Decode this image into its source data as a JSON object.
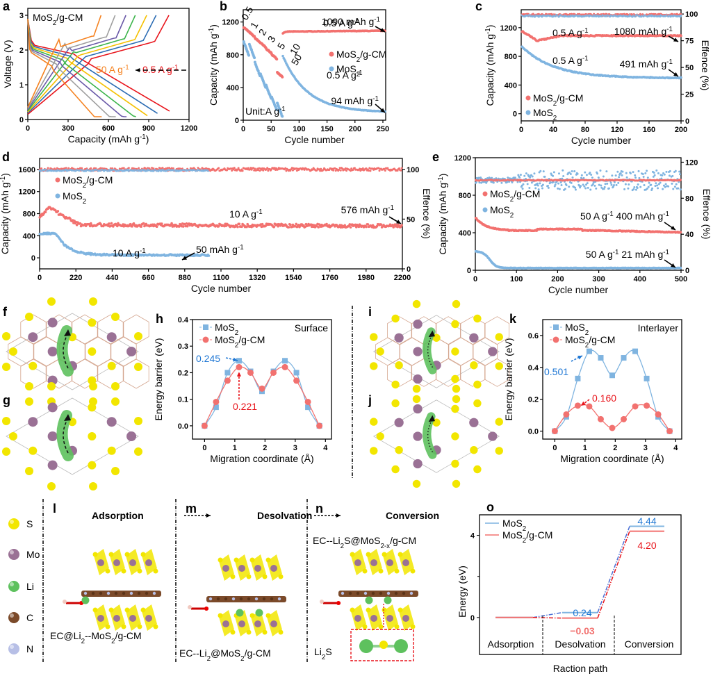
{
  "colors": {
    "red": "#f2716f",
    "blue": "#7fb4e0",
    "blue_dark": "#1f77d4",
    "red_dark": "#e8141b",
    "orange": "#f58220",
    "S": "#f2e600",
    "Mo": "#9a7195",
    "Li": "#5ec15e",
    "C": "#7b4a2a",
    "N": "#b7bfe6"
  },
  "legend_series": {
    "composite": "MoS2/g-CM",
    "bare": "MoS2"
  },
  "chart_data": [
    {
      "id": "a",
      "type": "line",
      "title": "MoS2/g-CM",
      "xlabel": "Capacity (mAh g-1)",
      "ylabel": "Voltage (V)",
      "xlim": [
        0,
        1200
      ],
      "ylim": [
        0,
        3.2
      ],
      "xticks": [
        0,
        300,
        600,
        900,
        1200
      ],
      "yticks": [
        0,
        1,
        2,
        3
      ],
      "annotations": [
        {
          "text": "50 A g-1",
          "color": "#f58220"
        },
        {
          "text": "0.5 A g-1",
          "color": "#e8141b"
        }
      ],
      "series": [
        {
          "name": "0.5 A g-1",
          "color": "#e8141b",
          "charge_end": 1050,
          "discharge_end": 1055
        },
        {
          "name": "1 A g-1",
          "color": "#2b6cb3",
          "charge_end": 955,
          "discharge_end": 965
        },
        {
          "name": "2 A g-1",
          "color": "#f5c000",
          "charge_end": 885,
          "discharge_end": 890
        },
        {
          "name": "3 A g-1",
          "color": "#3cb44b",
          "charge_end": 800,
          "discharge_end": 805
        },
        {
          "name": "5 A g-1",
          "color": "#6a5aa8",
          "charge_end": 730,
          "discharge_end": 735
        },
        {
          "name": "10 A g-1",
          "color": "#9e9e9e",
          "charge_end": 650,
          "discharge_end": 655
        },
        {
          "name": "50 A g-1",
          "color": "#f58220",
          "charge_end": 545,
          "discharge_end": 550
        }
      ]
    },
    {
      "id": "b",
      "type": "scatter",
      "xlabel": "Cycle number",
      "ylabel": "Capacity (mAh g-1)",
      "xlim": [
        0,
        255
      ],
      "ylim": [
        0,
        1350
      ],
      "xticks": [
        0,
        50,
        100,
        150,
        200,
        250
      ],
      "yticks": [
        0,
        400,
        800,
        1200
      ],
      "rate_labels": [
        "0.5",
        "1",
        "2",
        "3",
        "5",
        "10",
        "50"
      ],
      "unit_label": "Unit:A g-1",
      "annotations": [
        "0.5 A g-1",
        "1090 mAh g-1",
        "0.5 A g-1",
        "94 mAh g-1"
      ],
      "series": [
        {
          "name": "MoS2/g-CM",
          "rate_steps": [
            1130,
            1070,
            1000,
            940,
            870,
            800,
            580
          ],
          "recovery": 1060,
          "final": 1090
        },
        {
          "name": "MoS2",
          "rate_steps": [
            950,
            920,
            700,
            560,
            420,
            280,
            200
          ],
          "recovery": 780,
          "final": 94
        }
      ]
    },
    {
      "id": "c",
      "type": "scatter",
      "xlabel": "Cycle number",
      "ylabel": "Capacity (mAh g-1)",
      "y2label": "Effence (%)",
      "xlim": [
        0,
        200
      ],
      "ylim": [
        -100,
        1450
      ],
      "y2lim": [
        0,
        104
      ],
      "xticks": [
        0,
        40,
        80,
        120,
        160,
        200
      ],
      "yticks": [
        0,
        400,
        800,
        1200
      ],
      "y2ticks": [
        0,
        25,
        50,
        75,
        100
      ],
      "annotations": [
        "0.5 A g-1",
        "1080 mAh g-1",
        "0.5 A g-1",
        "491 mAh g-1"
      ],
      "series": [
        {
          "name": "MoS2/g-CM",
          "start": 1150,
          "min": 1010,
          "final": 1080,
          "efficiency": 100
        },
        {
          "name": "MoS2",
          "start": 940,
          "final": 491,
          "efficiency": 99
        }
      ]
    },
    {
      "id": "d",
      "type": "scatter",
      "xlabel": "Cycle number",
      "ylabel": "Capacity (mAh g-1)",
      "y2label": "Effence (%)",
      "xlim": [
        0,
        2200
      ],
      "ylim": [
        -200,
        1800
      ],
      "y2lim": [
        0,
        111
      ],
      "xticks": [
        0,
        220,
        440,
        660,
        880,
        1100,
        1320,
        1540,
        1760,
        1980,
        2200
      ],
      "yticks": [
        0,
        400,
        800,
        1200,
        1600
      ],
      "y2ticks": [
        0,
        50,
        100
      ],
      "annotations": [
        "10 A g-1",
        "576 mAh g-1",
        "10 A g-1",
        "50 mAh g-1"
      ],
      "series": [
        {
          "name": "MoS2/g-CM",
          "start": 900,
          "plateau": 600,
          "final": 576,
          "cycles": 2200,
          "efficiency": 100
        },
        {
          "name": "MoS2",
          "start": 440,
          "final": 50,
          "cycles": 1030,
          "efficiency": 99
        }
      ]
    },
    {
      "id": "e",
      "type": "scatter",
      "xlabel": "Cycle number",
      "ylabel": "Capacity (mAh g-1)",
      "y2label": "Effence (%)",
      "xlim": [
        0,
        500
      ],
      "ylim": [
        0,
        1200
      ],
      "y2lim": [
        0,
        125
      ],
      "xticks": [
        0,
        100,
        200,
        300,
        400,
        500
      ],
      "yticks": [
        0,
        400,
        800,
        1200
      ],
      "y2ticks": [
        0,
        40,
        80,
        120
      ],
      "annotations": [
        "50 A g-1  400 mAh g-1",
        "50 A g-1  21 mAh g-1"
      ],
      "series": [
        {
          "name": "MoS2/g-CM",
          "start": 560,
          "final": 400,
          "efficiency": 100
        },
        {
          "name": "MoS2",
          "start": 200,
          "final": 21,
          "efficiency": 100
        }
      ]
    },
    {
      "id": "h",
      "type": "line",
      "label": "Surface",
      "xlabel": "Migration coordinate (Å)",
      "ylabel": "Energy barrier (eV)",
      "xlim": [
        -0.4,
        4.2
      ],
      "ylim": [
        -0.05,
        0.4
      ],
      "xticks": [
        0,
        1,
        2,
        3,
        4
      ],
      "yticks": [
        0.0,
        0.1,
        0.2,
        0.3,
        0.4
      ],
      "x": [
        0,
        0.38,
        0.76,
        1.14,
        1.52,
        1.9,
        2.28,
        2.66,
        3.04,
        3.42,
        3.8
      ],
      "series": [
        {
          "name": "MoS2",
          "marker": "square",
          "values": [
            0,
            0.07,
            0.2,
            0.245,
            0.205,
            0.13,
            0.205,
            0.245,
            0.2,
            0.07,
            0
          ]
        },
        {
          "name": "MoS2/g-CM",
          "marker": "circle",
          "values": [
            0,
            0.09,
            0.17,
            0.221,
            0.2,
            0.14,
            0.2,
            0.221,
            0.17,
            0.09,
            0
          ]
        }
      ],
      "annotations": [
        {
          "text": "0.245",
          "color": "#1f77d4"
        },
        {
          "text": "0.221",
          "color": "#e8141b"
        }
      ]
    },
    {
      "id": "k",
      "type": "line",
      "label": "Interlayer",
      "xlabel": "Migration coordinate (Å)",
      "ylabel": "Energy barrier (eV)",
      "xlim": [
        -0.4,
        4.2
      ],
      "ylim": [
        -0.05,
        0.7
      ],
      "xticks": [
        0,
        1,
        2,
        3,
        4
      ],
      "yticks": [
        0.0,
        0.2,
        0.4,
        0.6
      ],
      "x": [
        0,
        0.38,
        0.76,
        1.14,
        1.52,
        1.9,
        2.28,
        2.66,
        3.04,
        3.42,
        3.8
      ],
      "series": [
        {
          "name": "MoS2",
          "marker": "square",
          "values": [
            0,
            0.09,
            0.33,
            0.501,
            0.46,
            0.35,
            0.46,
            0.501,
            0.33,
            0.09,
            0
          ]
        },
        {
          "name": "MoS2/g-CM",
          "marker": "circle",
          "values": [
            0,
            0.105,
            0.16,
            0.155,
            0.075,
            0.02,
            0.075,
            0.155,
            0.16,
            0.105,
            0
          ]
        }
      ],
      "annotations": [
        {
          "text": "0.501",
          "color": "#1f77d4"
        },
        {
          "text": "0.160",
          "color": "#e8141b"
        }
      ]
    },
    {
      "id": "o",
      "type": "line",
      "xlabel": "Raction path",
      "ylabel": "Energy (eV)",
      "ylim": [
        -1.8,
        5.0
      ],
      "yticks": [
        0,
        4
      ],
      "categories": [
        "Adsorption",
        "Desolvation",
        "Conversion"
      ],
      "series": [
        {
          "name": "MoS2",
          "values": [
            0,
            0.24,
            4.44
          ]
        },
        {
          "name": "MoS2/g-CM",
          "values": [
            0,
            -0.03,
            4.2
          ]
        }
      ],
      "annotations": [
        {
          "text": "4.44",
          "color": "#1f77d4"
        },
        {
          "text": "4.20",
          "color": "#e8141b"
        },
        {
          "text": "0.24",
          "color": "#1f77d4"
        },
        {
          "text": "−0.03",
          "color": "#f2716f"
        }
      ]
    }
  ],
  "structures": {
    "letters": [
      "f",
      "g",
      "i",
      "j"
    ]
  },
  "element_legend": [
    "S",
    "Mo",
    "Li",
    "C",
    "N"
  ],
  "reaction_panels": [
    {
      "letter": "l",
      "title": "Adsorption",
      "caption": "EC@Li2--MoS2/g-CM",
      "arrow": false
    },
    {
      "letter": "m",
      "title": "Desolvation",
      "caption": "EC--Li2@MoS2/g-CM",
      "arrow": true
    },
    {
      "letter": "n",
      "title": "Conversion",
      "caption_top": "EC--Li2S@MoS2-x/g-CM",
      "inset_label": "Li2S",
      "arrow": true
    }
  ],
  "panel_letters": [
    "a",
    "b",
    "c",
    "d",
    "e",
    "f",
    "g",
    "h",
    "i",
    "j",
    "k",
    "l",
    "m",
    "n",
    "o"
  ]
}
